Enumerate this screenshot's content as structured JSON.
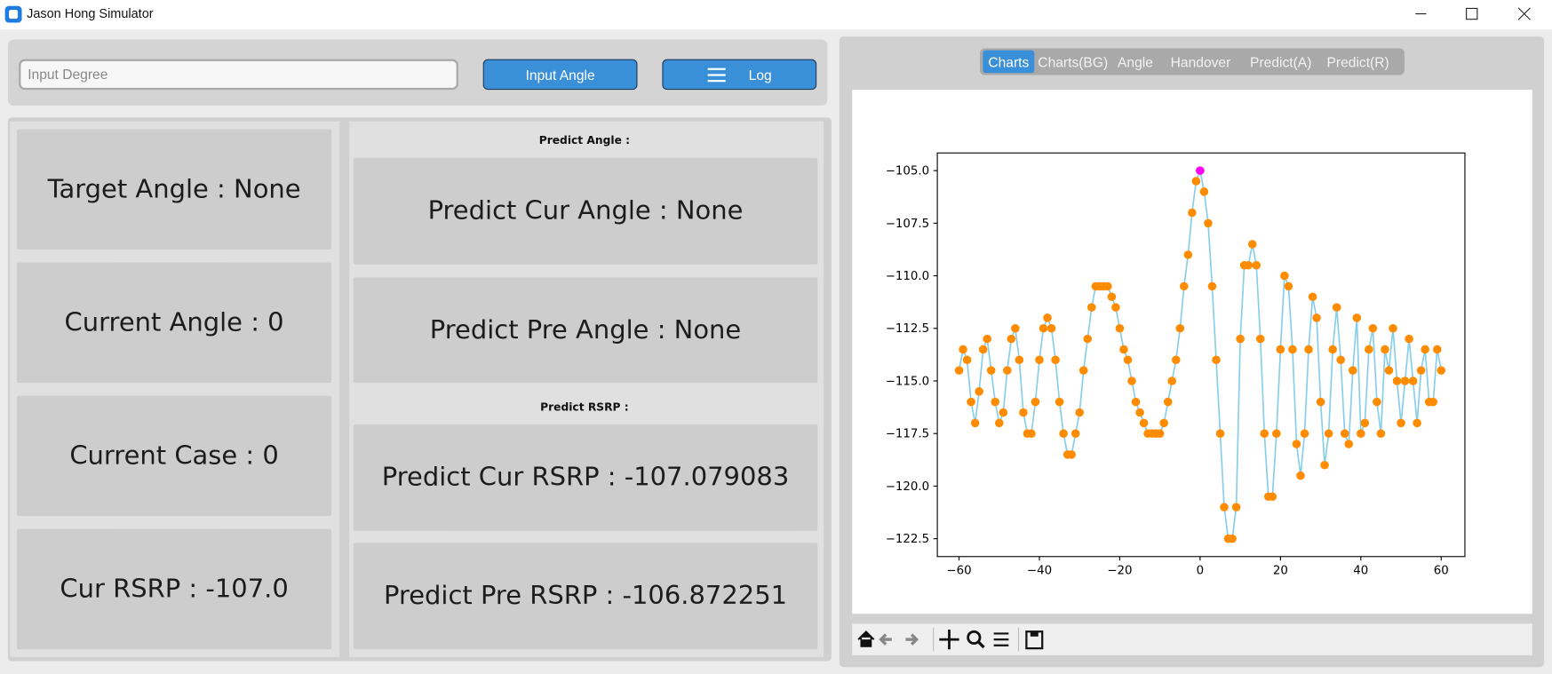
{
  "window": {
    "title": "Jason Hong Simulator"
  },
  "input": {
    "placeholder": "Input Degree"
  },
  "buttons": [
    "Input Angle",
    "Log"
  ],
  "status_cards": [
    "Target Angle : None",
    "Current Angle : 0",
    "Current Case : 0",
    "Cur RSRP : -107.0"
  ],
  "predict_angle": {
    "heading": "Predict Angle :",
    "cards": [
      "Predict Cur Angle : None",
      "Predict Pre Angle : None"
    ]
  },
  "predict_rsrp": {
    "heading": "Predict RSRP :",
    "cards": [
      "Predict Cur RSRP : -107.079083",
      "Predict Pre RSRP : -106.872251"
    ]
  },
  "tabs": {
    "items": [
      "Charts",
      "Charts(BG)",
      "Angle",
      "Handover",
      "Predict(A)",
      "Predict(R)"
    ],
    "selected": 0
  },
  "chart_data": {
    "type": "line",
    "x": [
      -60,
      -59,
      -58,
      -57,
      -56,
      -55,
      -54,
      -53,
      -52,
      -51,
      -50,
      -49,
      -48,
      -47,
      -46,
      -45,
      -44,
      -43,
      -42,
      -41,
      -40,
      -39,
      -38,
      -37,
      -36,
      -35,
      -34,
      -33,
      -32,
      -31,
      -30,
      -29,
      -28,
      -27,
      -26,
      -25,
      -24,
      -23,
      -22,
      -21,
      -20,
      -19,
      -18,
      -17,
      -16,
      -15,
      -14,
      -13,
      -12,
      -11,
      -10,
      -9,
      -8,
      -7,
      -6,
      -5,
      -4,
      -3,
      -2,
      -1,
      0,
      1,
      2,
      3,
      4,
      5,
      6,
      7,
      8,
      9,
      10,
      11,
      12,
      13,
      14,
      15,
      16,
      17,
      18,
      19,
      20,
      21,
      22,
      23,
      24,
      25,
      26,
      27,
      28,
      29,
      30,
      31,
      32,
      33,
      34,
      35,
      36,
      37,
      38,
      39,
      40,
      41,
      42,
      43,
      44,
      45,
      46,
      47,
      48,
      49,
      50,
      51,
      52,
      53,
      54,
      55,
      56,
      57,
      58,
      59,
      60
    ],
    "series": [
      {
        "color": "#87ceeb",
        "marker_color": "#ff8c00",
        "values": [
          -114.5,
          -113.5,
          -114,
          -116,
          -117,
          -115.5,
          -113.5,
          -113,
          -114.5,
          -116,
          -117,
          -116.5,
          -114.5,
          -113,
          -112.5,
          -114,
          -116.5,
          -117.5,
          -117.5,
          -116,
          -114,
          -112.5,
          -112,
          -112.5,
          -114,
          -116,
          -117.5,
          -118.5,
          -118.5,
          -117.5,
          -116.5,
          -114.5,
          -113,
          -111.5,
          -110.5,
          -110.5,
          -110.5,
          -110.5,
          -111,
          -111.5,
          -112.5,
          -113.5,
          -114,
          -115,
          -116,
          -116.5,
          -117,
          -117.5,
          -117.5,
          -117.5,
          -117.5,
          -117,
          -116,
          -115,
          -114,
          -112.5,
          -110.5,
          -109,
          -107,
          -105.5,
          -105,
          -106,
          -107.5,
          -110.5,
          -114,
          -117.5,
          -121,
          -122.5,
          -122.5,
          -121,
          -113,
          -109.5,
          -109.5,
          -108.5,
          -109.5,
          -113,
          -117.5,
          -120.5,
          -120.5,
          -117.5,
          -113.5,
          -110,
          -110.5,
          -113.5,
          -118,
          -119.5,
          -117.5,
          -113.5,
          -111,
          -112,
          -116,
          -119,
          -117.5,
          -113.5,
          -111.5,
          -114,
          -117.5,
          -118,
          -114.5,
          -112,
          -117.5,
          -117,
          -113.5,
          -112.5,
          -116,
          -117.5,
          -113.5,
          -114.5,
          -112.5,
          -115,
          -117,
          -115,
          -113,
          -115,
          -117,
          -114.5,
          -113.5,
          -116,
          -116,
          -113.5,
          -114.5
        ]
      }
    ],
    "highlight": {
      "x": 0,
      "y": -105,
      "color": "#ff00ff"
    },
    "xlim": [
      -65.4,
      65.9
    ],
    "ylim": [
      -123.35,
      -104.16
    ],
    "xticks": [
      {
        "value": -60,
        "label": "−60"
      },
      {
        "value": -40,
        "label": "−40"
      },
      {
        "value": -20,
        "label": "−20"
      },
      0,
      20,
      40,
      60
    ],
    "yticks": [
      {
        "value": -105,
        "label": "−105.0"
      },
      {
        "value": -107.5,
        "label": "−107.5"
      },
      {
        "value": -110,
        "label": "−110.0"
      },
      {
        "value": -112.5,
        "label": "−112.5"
      },
      {
        "value": -115,
        "label": "−115.0"
      },
      {
        "value": -117.5,
        "label": "−117.5"
      },
      {
        "value": -120,
        "label": "−120.0"
      },
      {
        "value": -122.5,
        "label": "−122.5"
      }
    ],
    "grid": false
  }
}
